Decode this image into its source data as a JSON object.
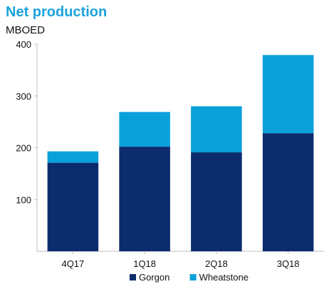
{
  "chart_data": {
    "type": "bar",
    "stacked": true,
    "title": "Net production",
    "subtitle": "MBOED",
    "categories": [
      "4Q17",
      "1Q18",
      "2Q18",
      "3Q18"
    ],
    "series": [
      {
        "name": "Gorgon",
        "color": "#0c2c6e",
        "values": [
          171,
          202,
          191,
          228
        ]
      },
      {
        "name": "Wheatstone",
        "color": "#0aa0da",
        "values": [
          22,
          67,
          89,
          151
        ]
      }
    ],
    "ylim": [
      0,
      400
    ],
    "yticks": [
      100,
      200,
      300,
      400
    ],
    "xlabel": "",
    "ylabel": "",
    "grid": false,
    "legend": "bottom"
  }
}
